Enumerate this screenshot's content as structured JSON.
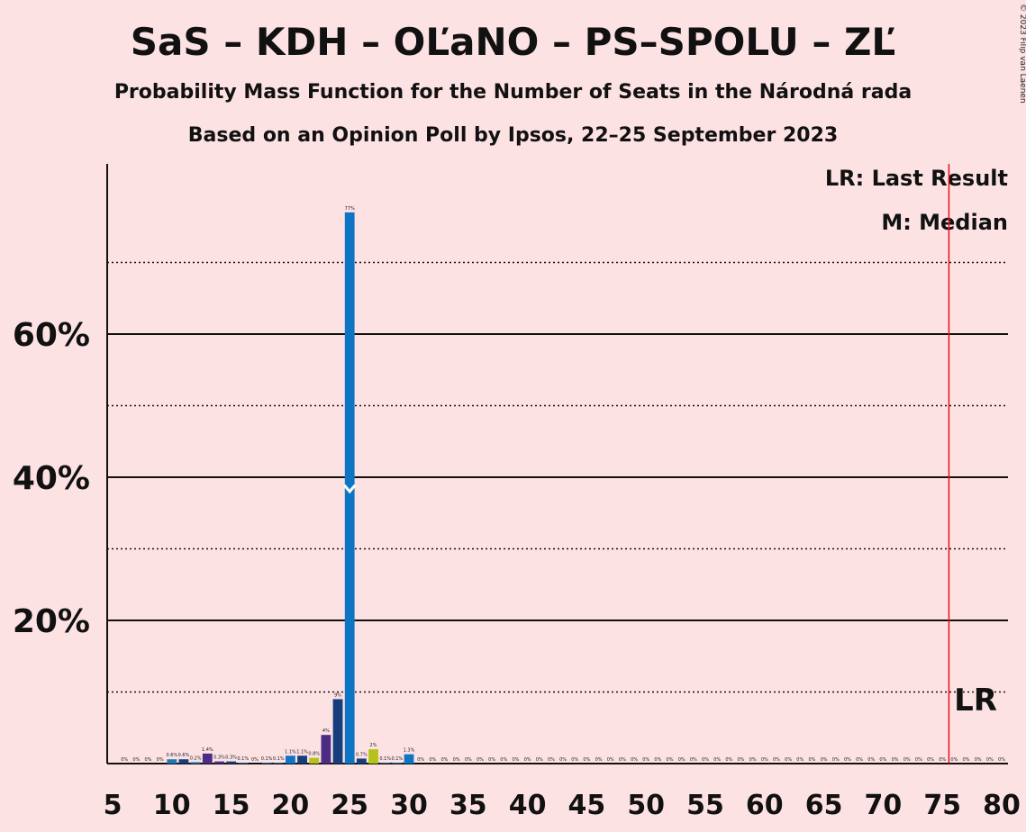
{
  "title": "SaS – KDH – OĽaNO – PS–SPOLU – ZĽ",
  "subtitle": "Probability Mass Function for the Number of Seats in the Národná rada",
  "source": "Based on an Opinion Poll by Ipsos, 22–25 September 2023",
  "copyright": "© 2023 Filip van Laenen",
  "legend": {
    "lr": "LR: Last Result",
    "m": "M: Median"
  },
  "lr_marker_label": "LR",
  "median_marker_label": "M",
  "chart_data": {
    "type": "bar",
    "title": "SaS – KDH – OĽaNO – PS–SPOLU – ZĽ",
    "xlabel": "",
    "ylabel": "",
    "xlim": [
      5,
      80
    ],
    "ylim": [
      0,
      83
    ],
    "x_ticks": [
      5,
      10,
      15,
      20,
      25,
      30,
      35,
      40,
      45,
      50,
      55,
      60,
      65,
      70,
      75,
      80
    ],
    "y_ticks": [
      20,
      40,
      60
    ],
    "y_tick_labels": [
      "20%",
      "40%",
      "60%"
    ],
    "minor_gridlines": [
      10,
      30,
      50,
      70
    ],
    "last_result": 76,
    "median": 25,
    "x": [
      6,
      7,
      8,
      9,
      10,
      11,
      12,
      13,
      14,
      15,
      16,
      17,
      18,
      19,
      20,
      21,
      22,
      23,
      24,
      25,
      26,
      27,
      28,
      29,
      30,
      31,
      32,
      33,
      34,
      35,
      36,
      37,
      38,
      39,
      40,
      41,
      42,
      43,
      44,
      45,
      46,
      47,
      48,
      49,
      50,
      51,
      52,
      53,
      54,
      55,
      56,
      57,
      58,
      59,
      60,
      61,
      62,
      63,
      64,
      65,
      66,
      67,
      68,
      69,
      70,
      71,
      72,
      73,
      74,
      75,
      76,
      77,
      78,
      79,
      80
    ],
    "values": [
      0,
      0,
      0,
      0,
      0.6,
      0.6,
      0.2,
      1.4,
      0.3,
      0.3,
      0.1,
      0,
      0.1,
      0.1,
      1.1,
      1.1,
      0.8,
      4,
      9,
      77,
      0.7,
      2,
      0.1,
      0.1,
      1.3,
      0,
      0,
      0,
      0,
      0,
      0,
      0,
      0,
      0,
      0,
      0,
      0,
      0,
      0,
      0,
      0,
      0,
      0,
      0,
      0,
      0,
      0,
      0,
      0,
      0,
      0,
      0,
      0,
      0,
      0,
      0,
      0,
      0,
      0,
      0,
      0,
      0,
      0,
      0,
      0,
      0,
      0,
      0,
      0,
      0,
      0,
      0,
      0,
      0,
      0
    ],
    "labels": [
      "0%",
      "0%",
      "0%",
      "0%",
      "0.6%",
      "0.6%",
      "0.2%",
      "1.4%",
      "0.3%",
      "0.3%",
      "0.1%",
      "0%",
      "0.1%",
      "0.1%",
      "1.1%",
      "1.1%",
      "0.8%",
      "4%",
      "9%",
      "77%",
      "0.7%",
      "2%",
      "0.1%",
      "0.1%",
      "1.3%",
      "0%",
      "0%",
      "0%",
      "0%",
      "0%",
      "0%",
      "0%",
      "0%",
      "0%",
      "0%",
      "0%",
      "0%",
      "0%",
      "0%",
      "0%",
      "0%",
      "0%",
      "0%",
      "0%",
      "0%",
      "0%",
      "0%",
      "0%",
      "0%",
      "0%",
      "0%",
      "0%",
      "0%",
      "0%",
      "0%",
      "0%",
      "0%",
      "0%",
      "0%",
      "0%",
      "0%",
      "0%",
      "0%",
      "0%",
      "0%",
      "0%",
      "0%",
      "0%",
      "0%",
      "0%",
      "0%",
      "0%",
      "0%",
      "0%",
      "0%"
    ],
    "colors": [
      "#1F77B4",
      "#1F77B4",
      "#1F77B4",
      "#1F77B4",
      "#1F77B4",
      "#163E7C",
      "#1F77B4",
      "#4B2D84",
      "#4B2D84",
      "#163E7C",
      "#1F77B4",
      "#1F77B4",
      "#1F77B4",
      "#1F77B4",
      "#0E74C4",
      "#163E7C",
      "#B3C31A",
      "#4B2D84",
      "#163E7C",
      "#0E74C4",
      "#163E7C",
      "#B3C31A",
      "#1F77B4",
      "#1F77B4",
      "#0E74C4",
      "#1F77B4",
      "#1F77B4",
      "#1F77B4",
      "#1F77B4",
      "#1F77B4",
      "#1F77B4",
      "#1F77B4",
      "#1F77B4",
      "#1F77B4",
      "#1F77B4",
      "#1F77B4",
      "#1F77B4",
      "#1F77B4",
      "#1F77B4",
      "#1F77B4",
      "#1F77B4",
      "#1F77B4",
      "#1F77B4",
      "#1F77B4",
      "#1F77B4",
      "#1F77B4",
      "#1F77B4",
      "#1F77B4",
      "#1F77B4",
      "#1F77B4",
      "#1F77B4",
      "#1F77B4",
      "#1F77B4",
      "#1F77B4",
      "#1F77B4",
      "#1F77B4",
      "#1F77B4",
      "#1F77B4",
      "#1F77B4",
      "#1F77B4",
      "#1F77B4",
      "#1F77B4",
      "#1F77B4",
      "#1F77B4",
      "#1F77B4",
      "#1F77B4",
      "#1F77B4",
      "#1F77B4",
      "#1F77B4",
      "#1F77B4",
      "#1F77B4",
      "#1F77B4",
      "#1F77B4",
      "#1F77B4",
      "#1F77B4"
    ],
    "background_color": "#FDE2E4",
    "last_result_line_color": "#E8101A",
    "grid": true
  }
}
